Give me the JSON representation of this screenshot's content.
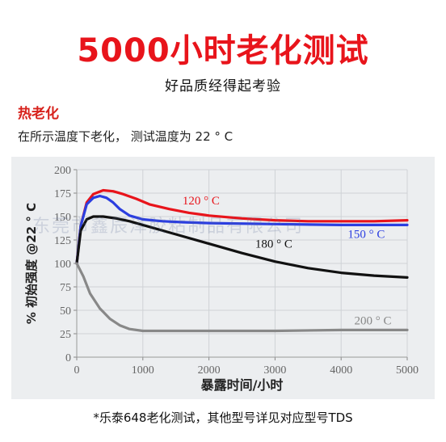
{
  "header": {
    "title": "5000小时老化测试",
    "subtitle": "好品质经得起考验"
  },
  "section": {
    "heading": "热老化",
    "description": "在所示温度下老化，   测试温度为 22 ° C"
  },
  "watermark": "东莞市鑫辰泽胶粘制品有限公司",
  "footnote": "*乐泰648老化测试，其他型号详见对应型号TDS",
  "chart_data": {
    "type": "line",
    "xlabel": "暴露时间/小时",
    "ylabel": "% 初始强度  @22 ° C",
    "xlim": [
      0,
      5000
    ],
    "ylim": [
      0,
      200
    ],
    "xticks": [
      0,
      1000,
      2000,
      3000,
      4000,
      5000
    ],
    "yticks": [
      0,
      25,
      50,
      75,
      100,
      125,
      150,
      175,
      200
    ],
    "grid": true,
    "series": [
      {
        "name": "120 ° C",
        "color": "#e8141b",
        "x": [
          0,
          60,
          150,
          250,
          400,
          550,
          700,
          900,
          1100,
          1400,
          1700,
          2000,
          2500,
          3000,
          3500,
          4000,
          4500,
          5000
        ],
        "y": [
          100,
          140,
          165,
          174,
          178,
          177,
          174,
          169,
          163,
          158,
          154,
          151,
          148,
          146,
          145,
          145,
          145,
          146
        ]
      },
      {
        "name": "150 ° C",
        "color": "#2b3ee0",
        "x": [
          0,
          60,
          150,
          250,
          350,
          450,
          550,
          650,
          800,
          1000,
          1300,
          1600,
          2000,
          3000,
          4000,
          5000
        ],
        "y": [
          100,
          140,
          163,
          170,
          172,
          170,
          165,
          158,
          151,
          147,
          145,
          144,
          143,
          142,
          141,
          141
        ]
      },
      {
        "name": "180 ° C",
        "color": "#111111",
        "x": [
          0,
          60,
          150,
          250,
          400,
          600,
          800,
          1000,
          1500,
          2000,
          2500,
          3000,
          3500,
          4000,
          4500,
          5000
        ],
        "y": [
          100,
          135,
          147,
          150,
          150,
          148,
          145,
          141,
          131,
          121,
          111,
          102,
          95,
          90,
          87,
          85
        ]
      },
      {
        "name": "200 ° C",
        "color": "#888888",
        "x": [
          0,
          100,
          200,
          350,
          500,
          650,
          800,
          1000,
          1500,
          2000,
          3000,
          4000,
          5000
        ],
        "y": [
          100,
          86,
          68,
          52,
          41,
          34,
          30,
          28,
          28,
          28,
          28,
          29,
          29
        ]
      }
    ],
    "annotations": [
      {
        "text": "120 ° C",
        "x": 1600,
        "y": 163,
        "color": "#e8141b"
      },
      {
        "text": "150 ° C",
        "x": 4100,
        "y": 127,
        "color": "#2b3ee0"
      },
      {
        "text": "180 ° C",
        "x": 2700,
        "y": 117,
        "color": "#111111"
      },
      {
        "text": "200 ° C",
        "x": 4200,
        "y": 35,
        "color": "#888888"
      }
    ]
  }
}
